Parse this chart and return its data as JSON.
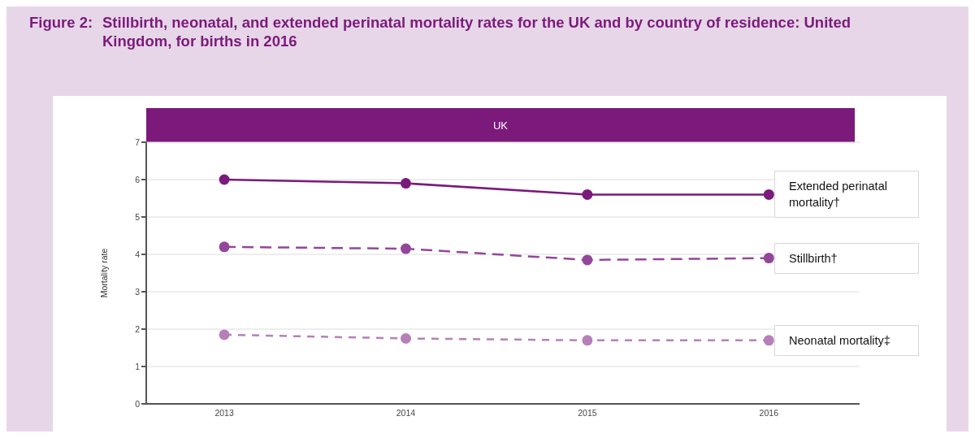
{
  "chart_data": {
    "type": "line",
    "title": "Figure 2:\tStillbirth, neonatal, and extended perinatal mortality rates for the UK and by country of residence: United Kingdom, for births in 2016",
    "subtitle": "UK",
    "ylabel": "Mortality rate",
    "categories": [
      "2013",
      "2014",
      "2015",
      "2016"
    ],
    "series": [
      {
        "name": "Extended perinatal mortality†",
        "color": "#7b1a7b",
        "line_style": "solid",
        "values": [
          6.0,
          5.9,
          5.6,
          5.6
        ]
      },
      {
        "name": "Stillbirth†",
        "color": "#93479a",
        "line_style": "dashed",
        "values": [
          4.2,
          4.15,
          3.85,
          3.9
        ]
      },
      {
        "name": "Neonatal mortality‡",
        "color": "#b77fb9",
        "line_style": "dashed",
        "values": [
          1.85,
          1.75,
          1.7,
          1.7
        ]
      }
    ],
    "ylim": [
      0,
      7
    ],
    "yticks": [
      0,
      1,
      2,
      3,
      4,
      5,
      6,
      7
    ],
    "grid": "y",
    "marker": "circle",
    "legend": "right"
  }
}
